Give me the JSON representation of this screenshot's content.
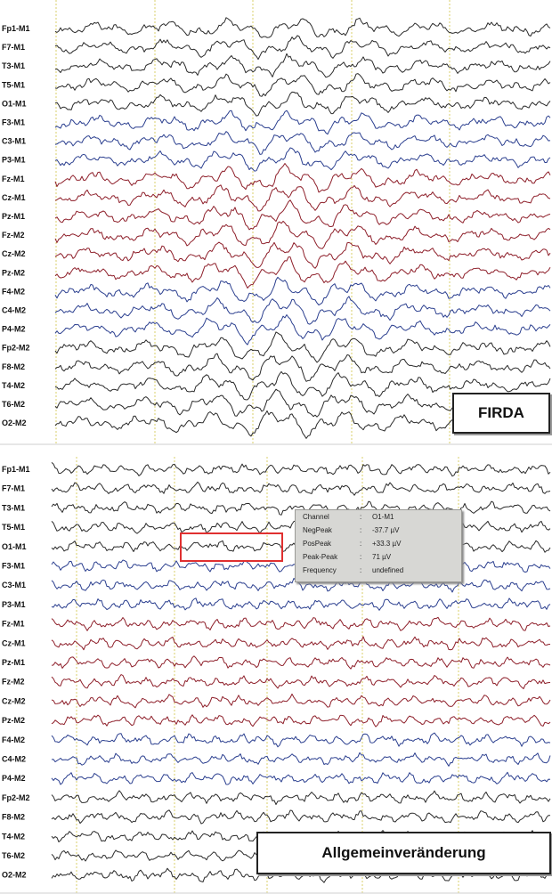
{
  "panels": [
    {
      "label": "FIRDA",
      "channels": [
        {
          "name": "Fp1-M1",
          "group": "black"
        },
        {
          "name": "F7-M1",
          "group": "black"
        },
        {
          "name": "T3-M1",
          "group": "black"
        },
        {
          "name": "T5-M1",
          "group": "black"
        },
        {
          "name": "O1-M1",
          "group": "black"
        },
        {
          "name": "F3-M1",
          "group": "blue"
        },
        {
          "name": "C3-M1",
          "group": "blue"
        },
        {
          "name": "P3-M1",
          "group": "blue"
        },
        {
          "name": "Fz-M1",
          "group": "red"
        },
        {
          "name": "Cz-M1",
          "group": "red"
        },
        {
          "name": "Pz-M1",
          "group": "red"
        },
        {
          "name": "Fz-M2",
          "group": "red"
        },
        {
          "name": "Cz-M2",
          "group": "red"
        },
        {
          "name": "Pz-M2",
          "group": "red"
        },
        {
          "name": "F4-M2",
          "group": "blue"
        },
        {
          "name": "C4-M2",
          "group": "blue"
        },
        {
          "name": "P4-M2",
          "group": "blue"
        },
        {
          "name": "Fp2-M2",
          "group": "black"
        },
        {
          "name": "F8-M2",
          "group": "black"
        },
        {
          "name": "T4-M2",
          "group": "black"
        },
        {
          "name": "T6-M2",
          "group": "black"
        },
        {
          "name": "O2-M2",
          "group": "black"
        }
      ]
    },
    {
      "label": "Allgemeinveränderung",
      "channels": [
        {
          "name": "Fp1-M1",
          "group": "black"
        },
        {
          "name": "F7-M1",
          "group": "black"
        },
        {
          "name": "T3-M1",
          "group": "black"
        },
        {
          "name": "T5-M1",
          "group": "black"
        },
        {
          "name": "O1-M1",
          "group": "black"
        },
        {
          "name": "F3-M1",
          "group": "blue"
        },
        {
          "name": "C3-M1",
          "group": "blue"
        },
        {
          "name": "P3-M1",
          "group": "blue"
        },
        {
          "name": "Fz-M1",
          "group": "red"
        },
        {
          "name": "Cz-M1",
          "group": "red"
        },
        {
          "name": "Pz-M1",
          "group": "red"
        },
        {
          "name": "Fz-M2",
          "group": "red"
        },
        {
          "name": "Cz-M2",
          "group": "red"
        },
        {
          "name": "Pz-M2",
          "group": "red"
        },
        {
          "name": "F4-M2",
          "group": "blue"
        },
        {
          "name": "C4-M2",
          "group": "blue"
        },
        {
          "name": "P4-M2",
          "group": "blue"
        },
        {
          "name": "Fp2-M2",
          "group": "black"
        },
        {
          "name": "F8-M2",
          "group": "black"
        },
        {
          "name": "T4-M2",
          "group": "black"
        },
        {
          "name": "T6-M2",
          "group": "black"
        },
        {
          "name": "O2-M2",
          "group": "black"
        }
      ]
    }
  ],
  "colors": {
    "black": "#2a2a2a",
    "blue": "#2b3f8f",
    "red": "#8e1f2a",
    "grid": "#d9cf6a",
    "selection": "#e03030"
  },
  "tooltip": {
    "rows": [
      {
        "key": "Channel",
        "value": "O1-M1"
      },
      {
        "key": "NegPeak",
        "value": "-37.7 µV"
      },
      {
        "key": "PosPeak",
        "value": "+33.3 µV"
      },
      {
        "key": "Peak-Peak",
        "value": "71 µV"
      },
      {
        "key": "Frequency",
        "value": "undefined"
      }
    ]
  }
}
